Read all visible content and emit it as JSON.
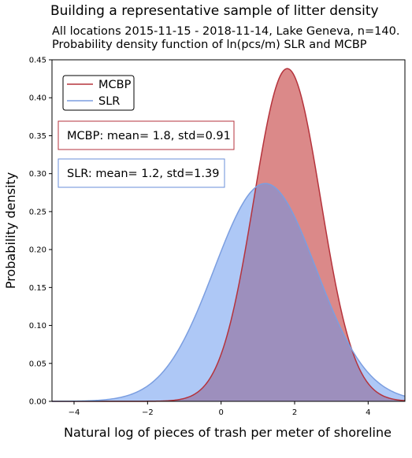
{
  "title": "Building a representative sample of litter density",
  "subtitle_lines": [
    "All locations 2015-11-15 - 2018-11-14, Lake Geneva, n=140.",
    "Probability density function of ln(pcs/m) SLR and MCBP"
  ],
  "chart_data": {
    "type": "area",
    "xlabel": "Natural log of pieces of trash per meter of shoreline",
    "ylabel": "Probability density",
    "xlim": [
      -4.6,
      5.0
    ],
    "ylim": [
      0,
      0.45
    ],
    "xticks": [
      -4,
      -2,
      0,
      2,
      4
    ],
    "xtick_labels": [
      "−4",
      "−2",
      "0",
      "2",
      "4"
    ],
    "yticks": [
      0.0,
      0.05,
      0.1,
      0.15,
      0.2,
      0.25,
      0.3,
      0.35,
      0.4,
      0.45
    ],
    "ytick_labels": [
      "0.00",
      "0.05",
      "0.10",
      "0.15",
      "0.20",
      "0.25",
      "0.30",
      "0.35",
      "0.40",
      "0.45"
    ],
    "legend_position": "top-left",
    "series": [
      {
        "name": "MCBP",
        "distribution": "normal",
        "mean": 1.8,
        "std": 0.91,
        "line_color": "#b5333c",
        "fill_color": "#cd5c5c",
        "fill_opacity": 0.72
      },
      {
        "name": "SLR",
        "distribution": "normal",
        "mean": 1.2,
        "std": 1.39,
        "line_color": "#7b9ee0",
        "fill_color": "#6495ed",
        "fill_opacity": 0.52
      }
    ],
    "annotations": [
      {
        "text": "MCBP: mean= 1.8, std=0.91",
        "border_color": "#b5333c"
      },
      {
        "text": "SLR: mean= 1.2, std=1.39",
        "border_color": "#6a8fd9"
      }
    ]
  }
}
